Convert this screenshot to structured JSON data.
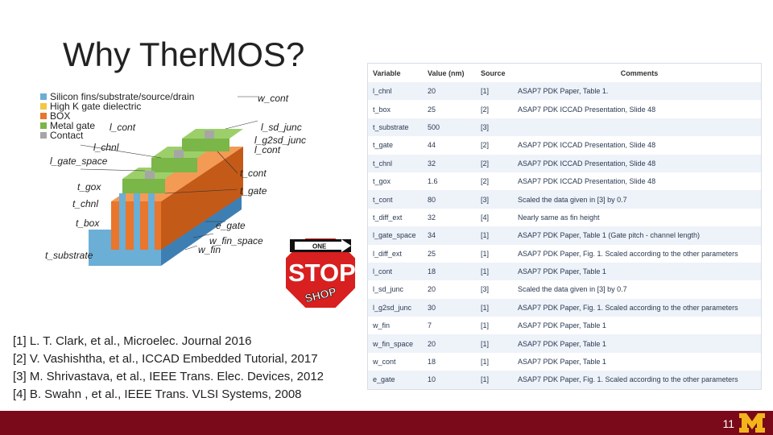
{
  "title": "Why Ther​MOS?",
  "legend": [
    {
      "label": "Silicon fins/substrate/source/drain",
      "color": "#6baed6"
    },
    {
      "label": "High K gate dielectric",
      "color": "#f2c744"
    },
    {
      "label": "BOX",
      "color": "#e8762c"
    },
    {
      "label": "Metal gate",
      "color": "#7ab648"
    },
    {
      "label": "Contact",
      "color": "#a6a6a6"
    }
  ],
  "diagram_labels": {
    "w_cont": "w_cont",
    "l_cont": "l_cont",
    "l_sd_junc": "l_sd_junc",
    "l_g2sd_junc": "l_g2sd_junc",
    "l_cont2": "l_cont",
    "l_chnl": "l_chnl",
    "l_gate_space": "l_gate_space",
    "t_cont": "t_cont",
    "t_gox": "t_gox",
    "t_gate": "t_gate",
    "t_chnl": "t_chnl",
    "t_box": "t_box",
    "e_gate": "e_gate",
    "w_fin_space": "w_fin_space",
    "w_fin": "w_fin",
    "t_substrate": "t_substrate"
  },
  "stop_sign": {
    "top_word": "ONE",
    "main_word": "STOP",
    "sub_word": "SHOP"
  },
  "references": [
    "[1] L. T. Clark, et al., Microelec. Journal 2016",
    "[2] V. Vashishtha, et al., ICCAD Embedded Tutorial, 2017",
    "[3] M. Shrivastava, et al., IEEE Trans. Elec. Devices, 2012",
    "[4] B. Swahn , et al., IEEE Trans. VLSI Systems, 2008"
  ],
  "table": {
    "headers": [
      "Variable",
      "Value (nm)",
      "Source",
      "Comments"
    ],
    "rows": [
      [
        "l_chnl",
        "20",
        "[1]",
        "ASAP7 PDK Paper, Table 1."
      ],
      [
        "t_box",
        "25",
        "[2]",
        "ASAP7 PDK ICCAD Presentation, Slide 48"
      ],
      [
        "t_substrate",
        "500",
        "[3]",
        ""
      ],
      [
        "t_gate",
        "44",
        "[2]",
        "ASAP7 PDK ICCAD Presentation, Slide 48"
      ],
      [
        "t_chnl",
        "32",
        "[2]",
        "ASAP7 PDK ICCAD Presentation, Slide 48"
      ],
      [
        "t_gox",
        "1.6",
        "[2]",
        "ASAP7 PDK ICCAD Presentation, Slide 48"
      ],
      [
        "t_cont",
        "80",
        "[3]",
        "Scaled the data given in [3] by 0.7"
      ],
      [
        "t_diff_ext",
        "32",
        "[4]",
        "Nearly same as fin height"
      ],
      [
        "l_gate_space",
        "34",
        "[1]",
        "ASAP7 PDK Paper, Table 1 (Gate pitch - channel length)"
      ],
      [
        "l_diff_ext",
        "25",
        "[1]",
        "ASAP7 PDK Paper, Fig. 1. Scaled according to the other parameters"
      ],
      [
        "l_cont",
        "18",
        "[1]",
        "ASAP7 PDK Paper, Table 1"
      ],
      [
        "l_sd_junc",
        "20",
        "[3]",
        "Scaled the data given in [3] by 0.7"
      ],
      [
        "l_g2sd_junc",
        "30",
        "[1]",
        "ASAP7 PDK Paper, Fig. 1. Scaled according to the other parameters"
      ],
      [
        "w_fin",
        "7",
        "[1]",
        "ASAP7 PDK Paper, Table 1"
      ],
      [
        "w_fin_space",
        "20",
        "[1]",
        "ASAP7 PDK Paper, Table 1"
      ],
      [
        "w_cont",
        "18",
        "[1]",
        "ASAP7 PDK Paper, Table 1"
      ],
      [
        "e_gate",
        "10",
        "[1]",
        "ASAP7 PDK Paper, Fig. 1. Scaled according to the other parameters"
      ]
    ]
  },
  "footer": {
    "page_number": "11",
    "accent": "#7a0a19",
    "logo_color": "#f2b51c"
  }
}
